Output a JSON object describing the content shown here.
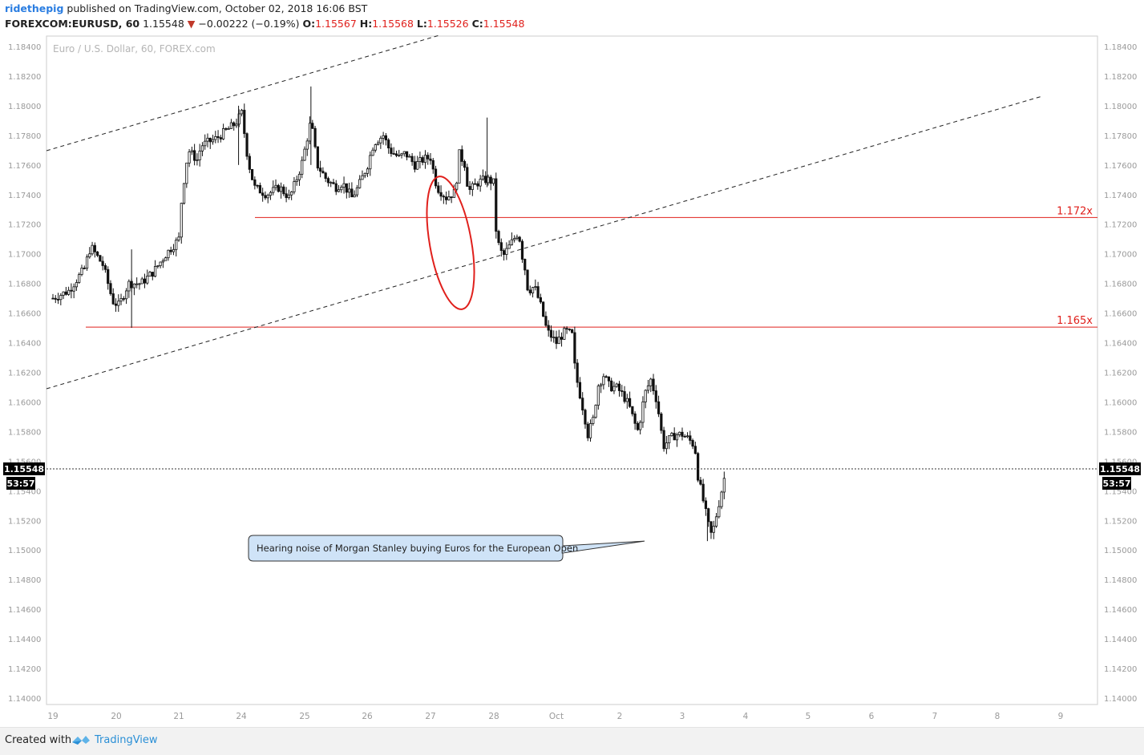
{
  "header": {
    "author": "ridethepig",
    "published_text": "published on TradingView.com, October 02, 2018 16:06 BST",
    "symbol": "FOREXCOM:EURUSD, 60",
    "last_price": "1.15548",
    "change_arrow": "▼",
    "change": "−0.00222 (−0.19%)",
    "o_label": "O:",
    "o_value": "1.15567",
    "h_label": "H:",
    "h_value": "1.15568",
    "l_label": "L:",
    "l_value": "1.15526",
    "c_label": "C:",
    "c_value": "1.15548"
  },
  "footer": {
    "created_with": "Created with",
    "brand": "TradingView"
  },
  "chart_data": {
    "type": "candlestick",
    "watermark": "Euro / U.S. Dollar, 60, FOREX.com",
    "ylim": [
      1.1393,
      1.1852
    ],
    "grid": false,
    "y_ticks": [
      "1.18400",
      "1.18200",
      "1.18000",
      "1.17800",
      "1.17600",
      "1.17400",
      "1.17200",
      "1.17000",
      "1.16800",
      "1.16600",
      "1.16400",
      "1.16200",
      "1.16000",
      "1.15800",
      "1.15600",
      "1.15400",
      "1.15200",
      "1.15000",
      "1.14800",
      "1.14600",
      "1.14400",
      "1.14200",
      "1.14000"
    ],
    "x_ticks": [
      "19",
      "20",
      "21",
      "24",
      "25",
      "26",
      "27",
      "28",
      "Oct",
      "2",
      "3",
      "4",
      "5",
      "6",
      "7",
      "8",
      "9"
    ],
    "current_price": {
      "label": "1.15548",
      "countdown": "53:57",
      "value": 1.15548
    },
    "horizontal_levels": [
      {
        "label": "1.172x",
        "value": 1.17245,
        "color": "#e0201c"
      },
      {
        "label": "1.165x",
        "value": 1.16505,
        "color": "#e0201c"
      }
    ],
    "annotation": {
      "text": "Hearing noise of Morgan Stanley buying Euros for the European Open",
      "price": 1.1506
    },
    "price_path": [
      [
        0,
        1.167
      ],
      [
        0.25,
        1.1675
      ],
      [
        0.5,
        1.169
      ],
      [
        0.6,
        1.1705
      ],
      [
        0.8,
        1.1692
      ],
      [
        0.95,
        1.1668
      ],
      [
        1.05,
        1.1665
      ],
      [
        1.2,
        1.168
      ],
      [
        1.4,
        1.168
      ],
      [
        1.6,
        1.1688
      ],
      [
        1.8,
        1.17
      ],
      [
        2.0,
        1.171
      ],
      [
        2.05,
        1.174
      ],
      [
        2.15,
        1.177
      ],
      [
        2.3,
        1.1763
      ],
      [
        2.35,
        1.1773
      ],
      [
        2.6,
        1.1778
      ],
      [
        2.9,
        1.1788
      ],
      [
        3.0,
        1.1795
      ],
      [
        3.1,
        1.1763
      ],
      [
        3.2,
        1.1745
      ],
      [
        3.4,
        1.174
      ],
      [
        3.6,
        1.1745
      ],
      [
        3.75,
        1.1738
      ],
      [
        3.8,
        1.1742
      ],
      [
        3.95,
        1.176
      ],
      [
        4.0,
        1.177
      ],
      [
        4.1,
        1.179
      ],
      [
        4.2,
        1.176
      ],
      [
        4.35,
        1.175
      ],
      [
        4.5,
        1.1745
      ],
      [
        4.6,
        1.1748
      ],
      [
        4.75,
        1.1738
      ],
      [
        4.85,
        1.1745
      ],
      [
        5.0,
        1.176
      ],
      [
        5.1,
        1.1775
      ],
      [
        5.25,
        1.178
      ],
      [
        5.35,
        1.177
      ],
      [
        5.5,
        1.1765
      ],
      [
        5.6,
        1.1768
      ],
      [
        5.75,
        1.176
      ],
      [
        5.9,
        1.1764
      ],
      [
        6.0,
        1.1765
      ],
      [
        6.1,
        1.1745
      ],
      [
        6.25,
        1.1738
      ],
      [
        6.4,
        1.1742
      ],
      [
        6.45,
        1.1768
      ],
      [
        6.55,
        1.176
      ],
      [
        6.6,
        1.1742
      ],
      [
        6.75,
        1.1748
      ],
      [
        6.85,
        1.175
      ],
      [
        6.92,
        1.175
      ],
      [
        7.0,
        1.1748
      ],
      [
        7.05,
        1.171
      ],
      [
        7.15,
        1.1698
      ],
      [
        7.25,
        1.1705
      ],
      [
        7.4,
        1.1715
      ],
      [
        7.45,
        1.17
      ],
      [
        7.5,
        1.169
      ],
      [
        7.55,
        1.1675
      ],
      [
        7.65,
        1.1678
      ],
      [
        7.75,
        1.1665
      ],
      [
        7.85,
        1.1648
      ],
      [
        8.0,
        1.164
      ],
      [
        8.05,
        1.1643
      ],
      [
        8.15,
        1.1648
      ],
      [
        8.25,
        1.1645
      ],
      [
        8.3,
        1.162
      ],
      [
        8.35,
        1.161
      ],
      [
        8.45,
        1.159
      ],
      [
        8.5,
        1.1578
      ],
      [
        8.6,
        1.159
      ],
      [
        8.65,
        1.161
      ],
      [
        8.75,
        1.1618
      ],
      [
        8.85,
        1.161
      ],
      [
        8.95,
        1.161
      ],
      [
        9.05,
        1.1605
      ],
      [
        9.15,
        1.1598
      ],
      [
        9.25,
        1.1585
      ],
      [
        9.3,
        1.158
      ],
      [
        9.4,
        1.1605
      ],
      [
        9.5,
        1.1615
      ],
      [
        9.6,
        1.16
      ],
      [
        9.65,
        1.1585
      ],
      [
        9.7,
        1.157
      ],
      [
        9.8,
        1.1575
      ],
      [
        9.9,
        1.1578
      ],
      [
        10.0,
        1.1578
      ],
      [
        10.1,
        1.1575
      ],
      [
        10.2,
        1.157
      ],
      [
        10.25,
        1.155
      ],
      [
        10.35,
        1.153
      ],
      [
        10.4,
        1.152
      ],
      [
        10.45,
        1.151
      ],
      [
        10.5,
        1.1515
      ],
      [
        10.55,
        1.1525
      ],
      [
        10.6,
        1.1535
      ],
      [
        10.65,
        1.1545
      ],
      [
        10.7,
        1.1555
      ]
    ]
  }
}
